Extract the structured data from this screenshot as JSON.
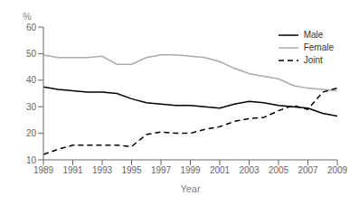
{
  "chart_data": {
    "type": "line",
    "xlabel": "Year",
    "ylabel": "%",
    "x": [
      1989,
      1990,
      1991,
      1992,
      1993,
      1994,
      1995,
      1996,
      1997,
      1998,
      1999,
      2000,
      2001,
      2002,
      2003,
      2004,
      2005,
      2006,
      2007,
      2008,
      2009
    ],
    "series": [
      {
        "name": "Male",
        "color": "#000000",
        "line_style": "solid",
        "values": [
          37.5,
          36.5,
          36.0,
          35.5,
          35.5,
          35.0,
          33.0,
          31.5,
          31.0,
          30.5,
          30.5,
          30.0,
          29.5,
          31.0,
          32.0,
          31.5,
          30.5,
          30.0,
          29.5,
          27.5,
          26.5
        ]
      },
      {
        "name": "Female",
        "color": "#aaaaaa",
        "line_style": "solid",
        "values": [
          49.5,
          48.5,
          48.5,
          48.5,
          49.0,
          46.0,
          46.0,
          48.5,
          49.5,
          49.5,
          49.0,
          48.5,
          47.0,
          44.5,
          42.5,
          41.5,
          40.5,
          38.0,
          37.0,
          36.5,
          36.0
        ]
      },
      {
        "name": "Joint",
        "color": "#000000",
        "line_style": "dashed",
        "values": [
          12.0,
          14.0,
          15.5,
          15.5,
          15.5,
          15.5,
          15.0,
          19.5,
          20.5,
          20.0,
          20.0,
          21.5,
          22.5,
          24.5,
          25.5,
          26.0,
          28.5,
          30.5,
          29.0,
          35.5,
          37.0
        ]
      }
    ],
    "xlim": [
      1989,
      2009
    ],
    "xticks": [
      1989,
      1991,
      1993,
      1995,
      1997,
      1999,
      2001,
      2003,
      2005,
      2007,
      2009
    ],
    "ylim": [
      10,
      60
    ],
    "yticks": [
      10,
      20,
      30,
      40,
      50,
      60
    ],
    "grid": false,
    "legend": "upper right"
  }
}
